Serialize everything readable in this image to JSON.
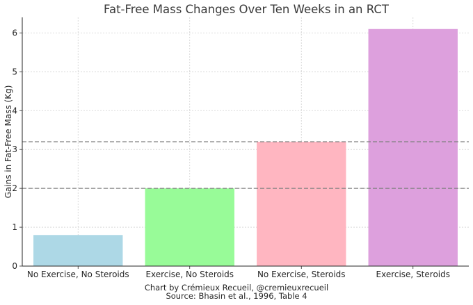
{
  "chart_data": {
    "type": "bar",
    "title": "Fat-Free Mass Changes Over Ten Weeks in an RCT",
    "xlabel": "",
    "ylabel": "Gains in Fat-Free Mass (Kg)",
    "categories": [
      "No Exercise, No Steroids",
      "Exercise, No Steroids",
      "No Exercise, Steroids",
      "Exercise, Steroids"
    ],
    "values": [
      0.8,
      2.0,
      3.2,
      6.1
    ],
    "bar_colors": [
      "#add8e6",
      "#98fb98",
      "#ffb6c1",
      "#dda0dd"
    ],
    "ylim": [
      0,
      6.4
    ],
    "yticks": [
      "0",
      "1",
      "2",
      "3",
      "4",
      "5",
      "6"
    ],
    "grid": true,
    "reference_lines": [
      {
        "y": 2.0,
        "style": "dashed",
        "color": "#808080"
      },
      {
        "y": 3.2,
        "style": "dashed",
        "color": "#808080"
      }
    ]
  },
  "caption": {
    "line1": "Chart by Crémieux Recueil, @cremieuxrecueil",
    "line2": "Source: Bhasin et al., 1996, Table 4"
  }
}
